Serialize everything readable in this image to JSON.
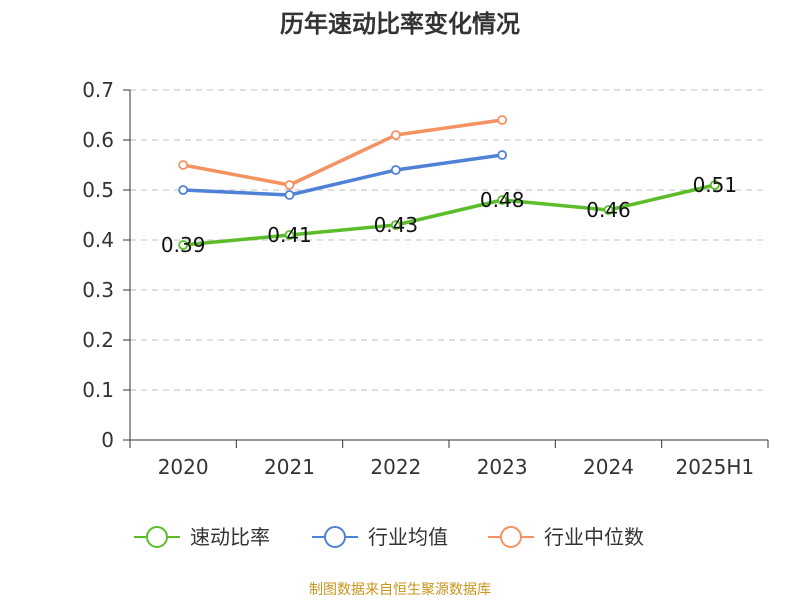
{
  "chart_data": {
    "type": "line",
    "title": "历年速动比率变化情况",
    "categories": [
      "2020",
      "2021",
      "2022",
      "2023",
      "2024",
      "2025H1"
    ],
    "ylim": [
      0,
      0.7
    ],
    "yticks": [
      "0",
      "0.1",
      "0.2",
      "0.3",
      "0.4",
      "0.5",
      "0.6",
      "0.7"
    ],
    "grid": true,
    "legend_position": "bottom",
    "series": [
      {
        "name": "速动比率",
        "color": "#5cbd2a",
        "values": [
          0.39,
          0.41,
          0.43,
          0.48,
          0.46,
          0.51
        ],
        "labels": [
          "0.39",
          "0.41",
          "0.43",
          "0.48",
          "0.46",
          "0.51"
        ]
      },
      {
        "name": "行业均值",
        "color": "#4f81d6",
        "values": [
          0.5,
          0.49,
          0.54,
          0.57,
          null,
          null
        ]
      },
      {
        "name": "行业中位数",
        "color": "#f59262",
        "values": [
          0.55,
          0.51,
          0.61,
          0.64,
          null,
          null
        ]
      }
    ],
    "source": "制图数据来自恒生聚源数据库"
  }
}
